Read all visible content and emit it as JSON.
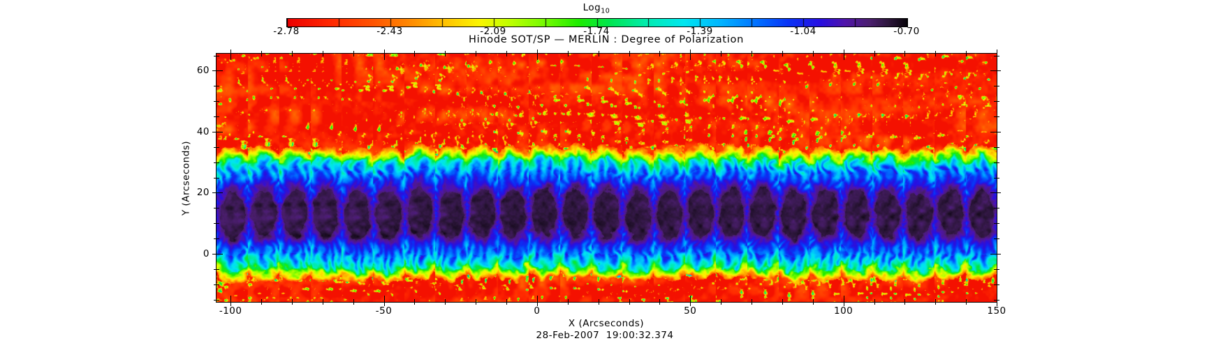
{
  "figure": {
    "title": "Hinode SOT/SP — MERLIN : Degree of Polarization",
    "timestamp": "28-Feb-2007  19:00:32.374",
    "background_color": "#ffffff",
    "text_color": "#000000"
  },
  "colorbar": {
    "scale_label": "Log",
    "scale_label_sub": "10",
    "tick_labels": [
      "-2.78",
      "-2.43",
      "-2.09",
      "-1.74",
      "-1.39",
      "-1.04",
      "-0.70"
    ]
  },
  "x_axis": {
    "label": "X (Arcseconds)",
    "tick_labels": [
      "-100",
      "-50",
      "0",
      "50",
      "100",
      "150"
    ]
  },
  "y_axis": {
    "label": "Y (Arcseconds)",
    "tick_labels": [
      "0",
      "20",
      "40",
      "60"
    ]
  },
  "chart_data": {
    "type": "heatmap",
    "title": "Hinode SOT/SP — MERLIN : Degree of Polarization",
    "subtitle": "28-Feb-2007  19:00:32.374",
    "xlabel": "X (Arcseconds)",
    "ylabel": "Y (Arcseconds)",
    "xlim": [
      -104.6,
      150
    ],
    "ylim": [
      -15.8,
      65.6
    ],
    "x_major_ticks": [
      -100,
      -50,
      0,
      50,
      100,
      150
    ],
    "x_minor_step": 10,
    "y_major_ticks": [
      0,
      20,
      40,
      60
    ],
    "y_minor_step": 5,
    "grid": false,
    "colorbar": {
      "quantity": "Log10 of Degree of Polarization",
      "vmin": -2.78,
      "vmax": -0.7,
      "major_ticks": [
        -2.78,
        -2.43,
        -2.09,
        -1.74,
        -1.39,
        -1.04,
        -0.7
      ],
      "n_minor_divisions": 2,
      "orientation": "horizontal",
      "position": "top"
    },
    "content_description": "Approximately 25 adjacent vertical raster strips, each repeating the same sunspot scan: dark purple-black umbra (log10 p near -0.8) centered near y = 13 arcsec, violet-blue penumbral filaments, cyan-green boundary ring, embedded in red-orange quiet-sun field (log10 p near -2.7) speckled with green and yellow magnetic elements; red granulation fills y > 33 arcsec and y < -5 arcsec",
    "appearance": {
      "n_strips": 25,
      "spot_center_y_arcsec": 13.3,
      "umbra_half_height_arcsec": 7.5,
      "penumbra_half_height_arcsec": 13.7,
      "halo_half_height_arcsec": 18.2,
      "vertical_aspect": 0.52,
      "colormap_stops": [
        [
          0.0,
          235,
          0,
          0
        ],
        [
          0.07,
          255,
          40,
          0
        ],
        [
          0.14,
          255,
          85,
          0
        ],
        [
          0.2,
          255,
          140,
          0
        ],
        [
          0.26,
          255,
          200,
          0
        ],
        [
          0.31,
          250,
          245,
          0
        ],
        [
          0.36,
          190,
          255,
          0
        ],
        [
          0.42,
          110,
          250,
          0
        ],
        [
          0.47,
          30,
          235,
          0
        ],
        [
          0.52,
          0,
          230,
          80
        ],
        [
          0.58,
          0,
          235,
          175
        ],
        [
          0.64,
          0,
          230,
          240
        ],
        [
          0.7,
          0,
          180,
          255
        ],
        [
          0.76,
          0,
          110,
          255
        ],
        [
          0.81,
          10,
          50,
          245
        ],
        [
          0.86,
          40,
          15,
          225
        ],
        [
          0.9,
          80,
          20,
          170
        ],
        [
          0.94,
          75,
          30,
          110
        ],
        [
          0.97,
          45,
          22,
          60
        ],
        [
          1.0,
          8,
          4,
          10
        ]
      ]
    }
  }
}
